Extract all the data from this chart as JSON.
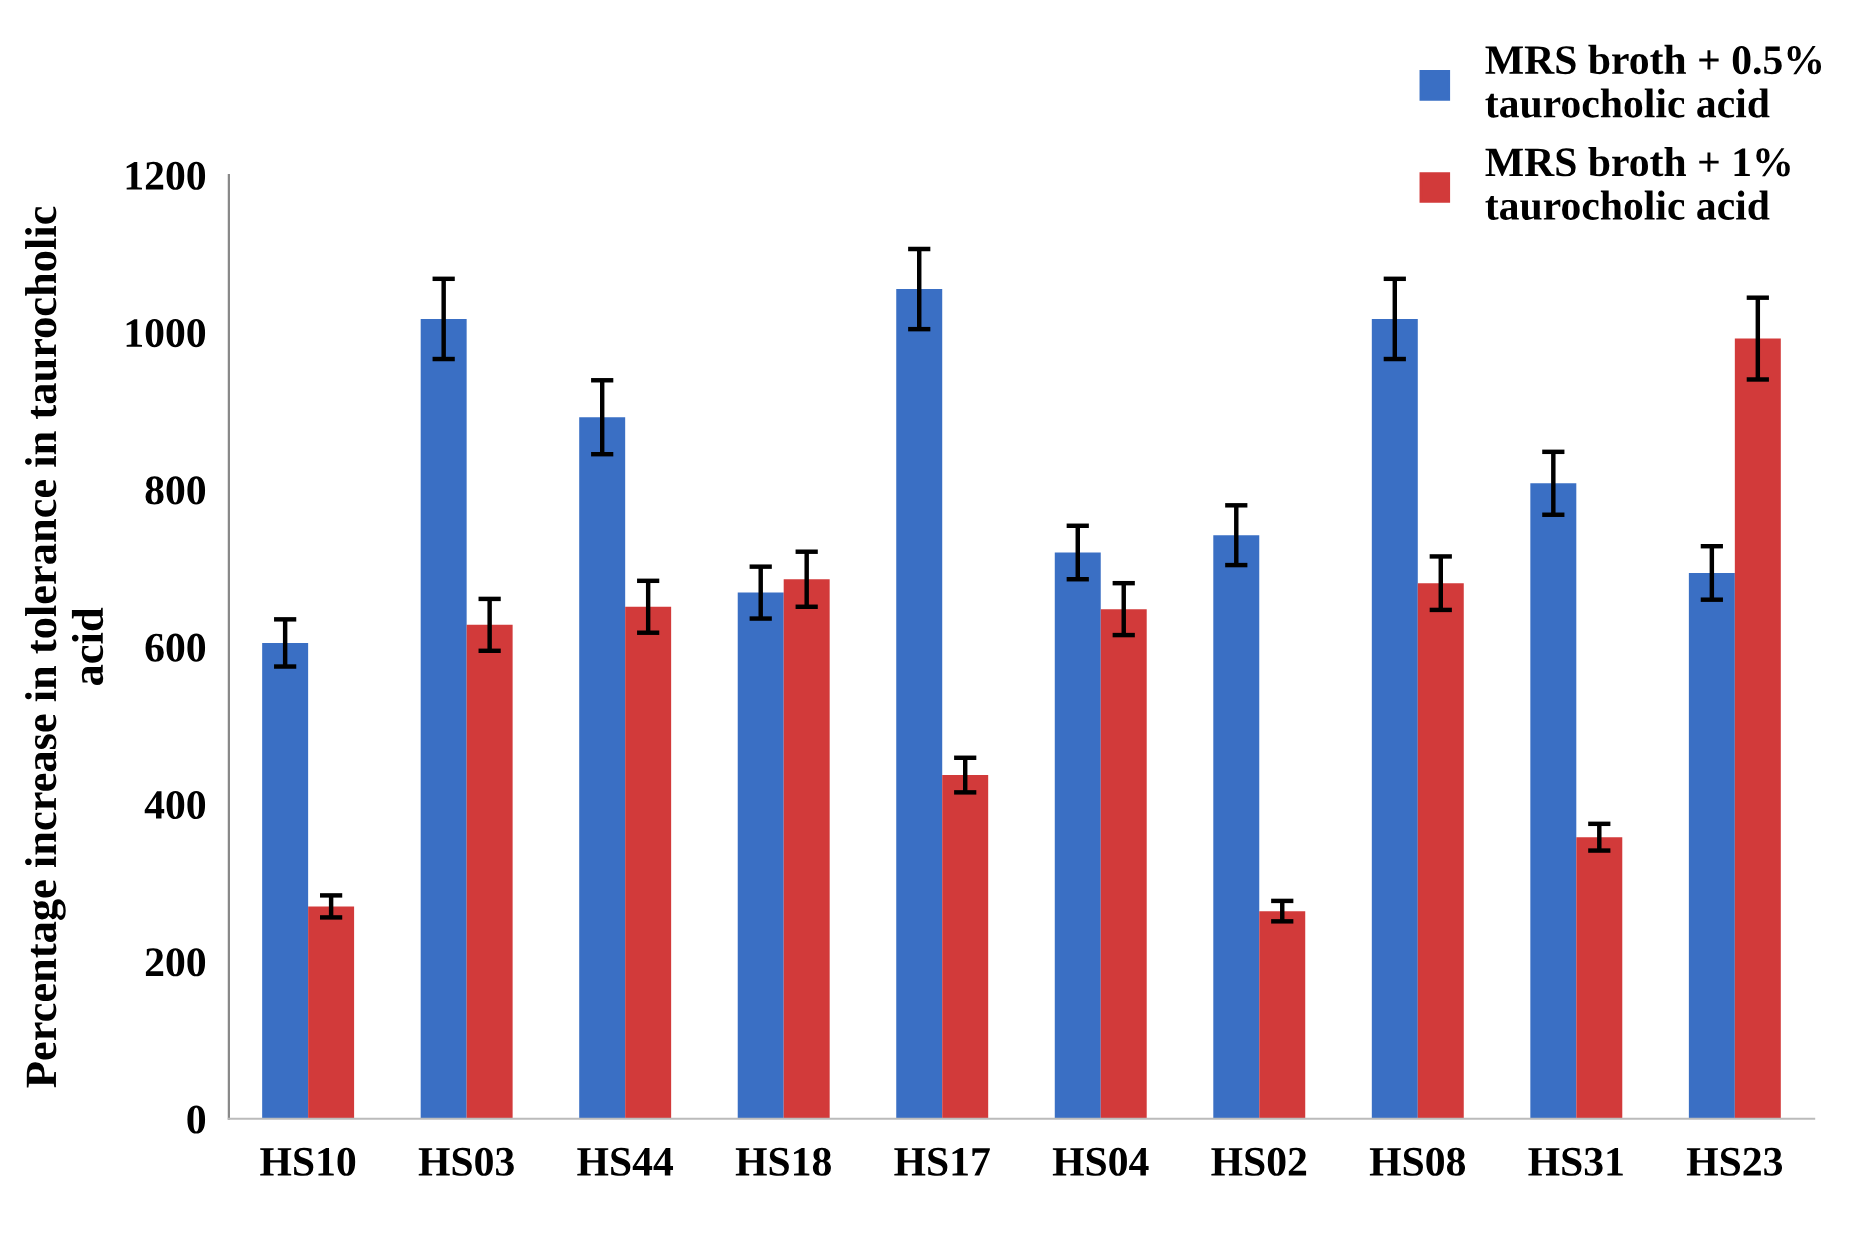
{
  "chart_data": {
    "type": "bar",
    "ylabel": "Percentage increase in tolerance in taurocholic\nacid",
    "categories": [
      "HS10",
      "HS03",
      "HS44",
      "HS18",
      "HS17",
      "HS04",
      "HS02",
      "HS08",
      "HS31",
      "HS23"
    ],
    "series": [
      {
        "name": "MRS broth + 0.5%\ntaurocholic acid",
        "color": "#3a6fc4",
        "values": [
          605,
          1017,
          892,
          669,
          1055,
          720,
          742,
          1017,
          808,
          694
        ],
        "errors": [
          30,
          51,
          47,
          33,
          51,
          34,
          38,
          51,
          40,
          34
        ]
      },
      {
        "name": "MRS broth + 1%\ntaurocholic acid",
        "color": "#d23a3a",
        "values": [
          270,
          628,
          651,
          686,
          437,
          648,
          264,
          681,
          358,
          992
        ],
        "errors": [
          14,
          33,
          33,
          35,
          22,
          33,
          13,
          34,
          17,
          52
        ]
      }
    ],
    "ylim": [
      0,
      1200
    ],
    "yticks": [
      0,
      200,
      400,
      600,
      800,
      1000,
      1200
    ],
    "grid": false,
    "legend": "top right",
    "marker": "square"
  }
}
